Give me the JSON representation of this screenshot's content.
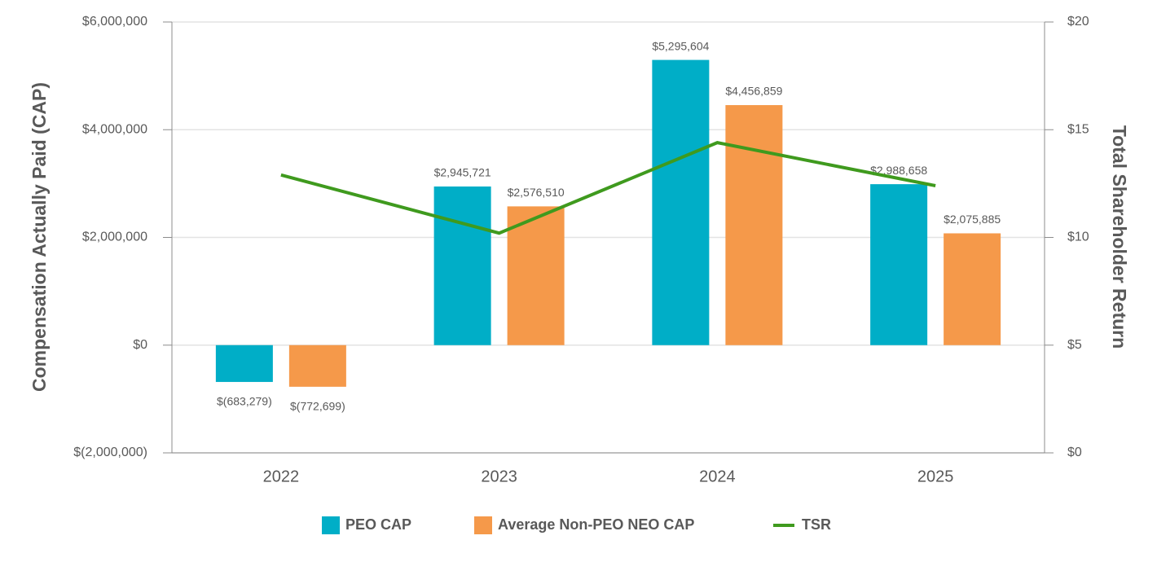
{
  "chart_data": {
    "type": "bar",
    "y_label": "Compensation Actually Paid (CAP)",
    "y2_label": "Total Shareholder Return",
    "categories": [
      "2022",
      "2023",
      "2024",
      "2025"
    ],
    "series": [
      {
        "name": "PEO CAP",
        "color": "#00aec7",
        "values": [
          -683279,
          2945721,
          5295604,
          2988658
        ],
        "value_labels": [
          "$(683,279)",
          "$2,945,721",
          "$5,295,604",
          "$2,988,658"
        ]
      },
      {
        "name": "Average Non-PEO NEO CAP",
        "color": "#f5994a",
        "values": [
          -772699,
          2576510,
          4456859,
          2075885
        ],
        "value_labels": [
          "$(772,699)",
          "$2,576,510",
          "$4,456,859",
          "$2,075,885"
        ]
      },
      {
        "name": "TSR",
        "type": "line",
        "axis": "y2",
        "color": "#3f9a1e",
        "values": [
          12.9,
          10.2,
          14.4,
          12.4
        ]
      }
    ],
    "ylim": [
      -2000000,
      6000000
    ],
    "yticks": [
      {
        "value": -2000000,
        "label": "$(2,000,000)"
      },
      {
        "value": 0,
        "label": "$0"
      },
      {
        "value": 2000000,
        "label": "$2,000,000"
      },
      {
        "value": 4000000,
        "label": "$4,000,000"
      },
      {
        "value": 6000000,
        "label": "$6,000,000"
      }
    ],
    "y2lim": [
      0,
      20
    ],
    "y2ticks": [
      {
        "value": 0,
        "label": "$0"
      },
      {
        "value": 5,
        "label": "$5"
      },
      {
        "value": 10,
        "label": "$10"
      },
      {
        "value": 15,
        "label": "$15"
      },
      {
        "value": 20,
        "label": "$20"
      }
    ],
    "grid": true
  }
}
